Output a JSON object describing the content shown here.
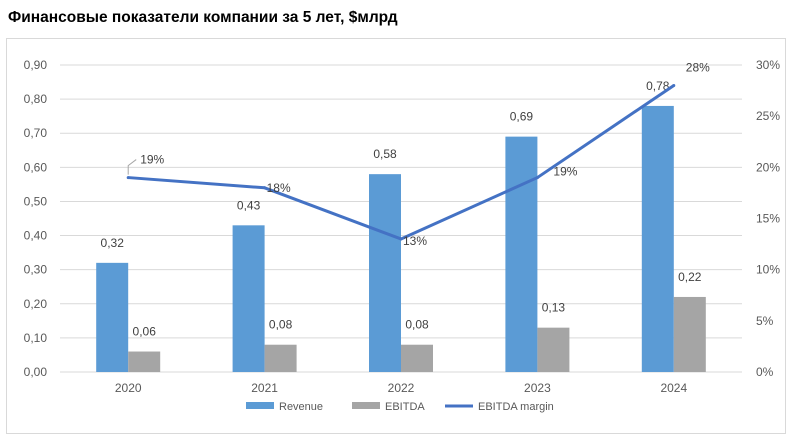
{
  "title": "Финансовые показатели компании за 5 лет, $млрд",
  "colors": {
    "revenue": "#5b9bd5",
    "ebitda": "#a5a5a5",
    "margin": "#4472c4",
    "grid": "#d9d9d9",
    "axis_text": "#595959"
  },
  "chart_data": {
    "type": "bar",
    "categories": [
      "2020",
      "2021",
      "2022",
      "2023",
      "2024"
    ],
    "series": [
      {
        "name": "Revenue",
        "type": "bar",
        "axis": "left",
        "values": [
          0.32,
          0.43,
          0.58,
          0.69,
          0.78
        ],
        "labels": [
          "0,32",
          "0,43",
          "0,58",
          "0,69",
          "0,78"
        ]
      },
      {
        "name": "EBITDA",
        "type": "bar",
        "axis": "left",
        "values": [
          0.06,
          0.08,
          0.08,
          0.13,
          0.22
        ],
        "labels": [
          "0,06",
          "0,08",
          "0,08",
          "0,13",
          "0,22"
        ]
      },
      {
        "name": "EBITDA margin",
        "type": "line",
        "axis": "right",
        "values": [
          19,
          18,
          13,
          19,
          28
        ],
        "labels": [
          "19%",
          "18%",
          "13%",
          "19%",
          "28%"
        ]
      }
    ],
    "ylim": [
      0,
      0.9
    ],
    "y2lim": [
      0,
      30
    ],
    "yticks": [
      "0,00",
      "0,10",
      "0,20",
      "0,30",
      "0,40",
      "0,50",
      "0,60",
      "0,70",
      "0,80",
      "0,90"
    ],
    "y2ticks": [
      "0%",
      "5%",
      "10%",
      "15%",
      "20%",
      "25%",
      "30%"
    ],
    "grid": true,
    "legend_position": "bottom"
  }
}
